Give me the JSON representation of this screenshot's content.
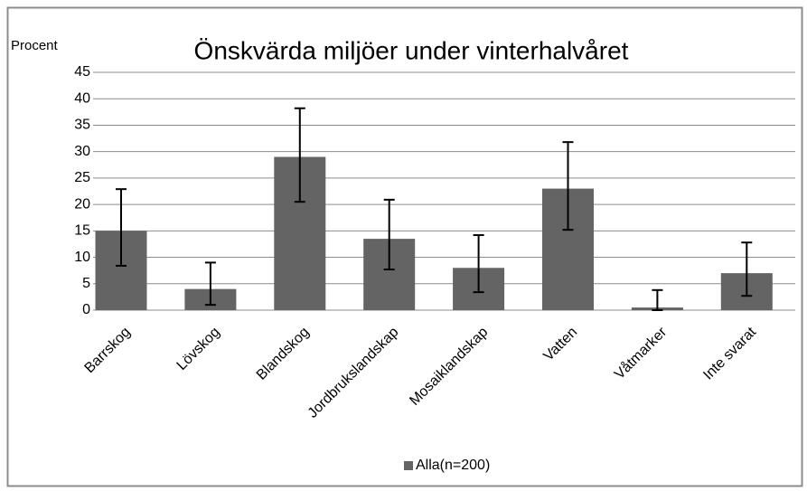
{
  "chart_data": {
    "type": "bar",
    "title": "Önskvärda miljöer under vinterhalvåret",
    "y_label": "Procent",
    "categories": [
      "Barrskog",
      "Lövskog",
      "Blandskog",
      "Jordbrukslandskap",
      "Mosaiklandskap",
      "Vatten",
      "Våtmarker",
      "Inte svarat"
    ],
    "series": [
      {
        "name": "Alla(n=200)",
        "color": "#646464",
        "values": [
          15,
          4,
          29,
          13.5,
          8,
          23,
          0.5,
          7
        ],
        "errors_plus": [
          7.9,
          5,
          9.2,
          7.4,
          6.2,
          8.8,
          3.3,
          5.8
        ],
        "errors_minus": [
          6.6,
          3,
          8.5,
          5.8,
          4.6,
          7.8,
          0.5,
          4.3
        ]
      }
    ],
    "ylim": [
      0,
      45
    ],
    "yticks": [
      0,
      5,
      10,
      15,
      20,
      25,
      30,
      35,
      40,
      45
    ],
    "grid": true,
    "legend": "bottom"
  }
}
